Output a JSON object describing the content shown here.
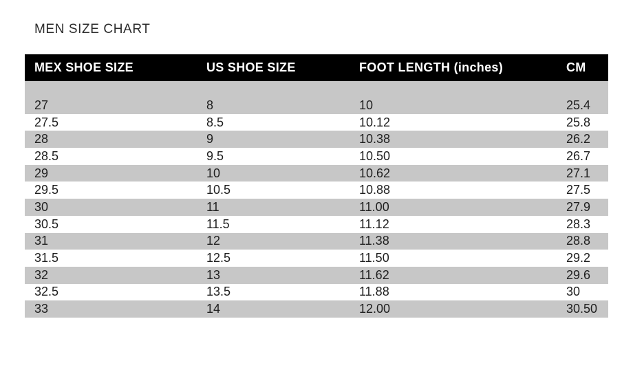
{
  "page": {
    "title": "MEN SIZE CHART"
  },
  "colors": {
    "header_bg": "#000000",
    "header_text": "#ffffff",
    "row_stripe_bg": "#c7c7c7",
    "row_plain_bg": "#ffffff",
    "body_text": "#1f1f1f",
    "title_text": "#2c2c2c",
    "page_bg": "#ffffff"
  },
  "chart_data": {
    "type": "table",
    "title": "MEN SIZE CHART",
    "columns": [
      "MEX SHOE SIZE",
      "US SHOE SIZE",
      "FOOT LENGTH (inches)",
      "CM"
    ],
    "rows": [
      [
        "27",
        "8",
        "10",
        "25.4"
      ],
      [
        "27.5",
        "8.5",
        "10.12",
        "25.8"
      ],
      [
        "28",
        "9",
        "10.38",
        "26.2"
      ],
      [
        "28.5",
        "9.5",
        "10.50",
        "26.7"
      ],
      [
        "29",
        "10",
        "10.62",
        "27.1"
      ],
      [
        "29.5",
        "10.5",
        "10.88",
        "27.5"
      ],
      [
        "30",
        "11",
        "11.00",
        "27.9"
      ],
      [
        "30.5",
        "11.5",
        "11.12",
        "28.3"
      ],
      [
        "31",
        "12",
        "11.38",
        "28.8"
      ],
      [
        "31.5",
        "12.5",
        "11.50",
        "29.2"
      ],
      [
        "32",
        "13",
        "11.62",
        "29.6"
      ],
      [
        "32.5",
        "13.5",
        "11.88",
        "30"
      ],
      [
        "33",
        "14",
        "12.00",
        "30.50"
      ]
    ],
    "layout": {
      "stripe_pattern": "first data row shaded, then alternating",
      "header_style": "black background, white bold text",
      "column_alignment": [
        "left",
        "left",
        "left",
        "left"
      ]
    }
  }
}
